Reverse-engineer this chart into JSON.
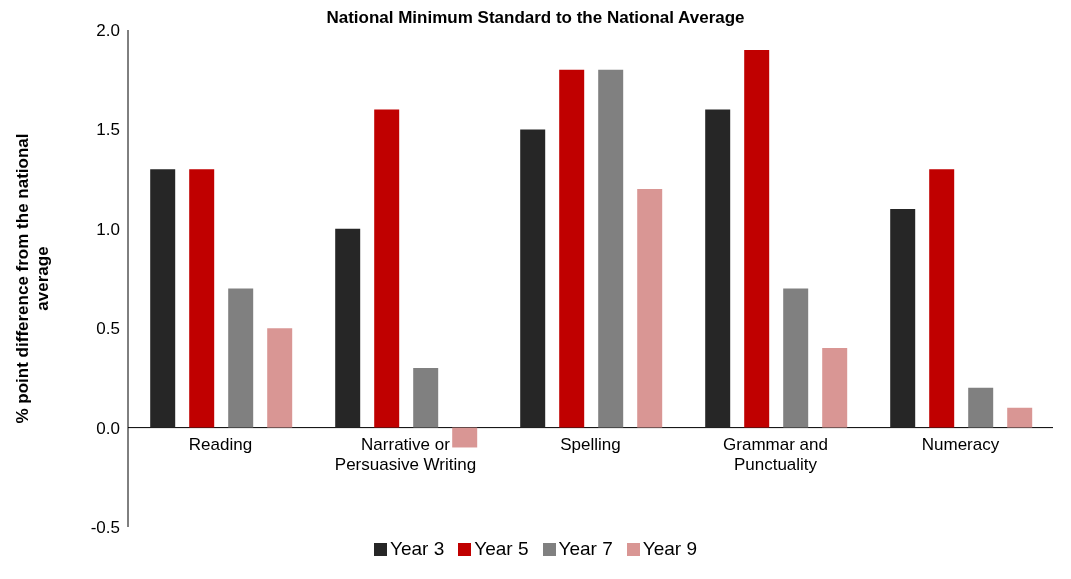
{
  "chart_data": {
    "type": "bar",
    "title": "National Minimum Standard to the National Average",
    "ylabel": "% point difference from the national average",
    "categories": [
      "Reading",
      "Narrative or Persuasive Writing",
      "Spelling",
      "Grammar and Punctuality",
      "Numeracy"
    ],
    "series": [
      {
        "name": "Year 3",
        "color": "#262626",
        "values": [
          1.3,
          1.0,
          1.5,
          1.6,
          1.1
        ]
      },
      {
        "name": "Year 5",
        "color": "#c00000",
        "values": [
          1.3,
          1.6,
          1.8,
          1.9,
          1.3
        ]
      },
      {
        "name": "Year 7",
        "color": "#808080",
        "values": [
          0.7,
          0.3,
          1.8,
          0.7,
          0.2
        ]
      },
      {
        "name": "Year 9",
        "color": "#d99694",
        "values": [
          0.5,
          -0.1,
          1.2,
          0.4,
          0.1
        ]
      }
    ],
    "ylim": [
      -0.5,
      2.0
    ],
    "yticks": [
      {
        "value": -0.5,
        "label": "-0.5"
      },
      {
        "value": 0,
        "label": "0.0"
      },
      {
        "value": 0.5,
        "label": "0.5"
      },
      {
        "value": 1,
        "label": "1.0"
      },
      {
        "value": 1.5,
        "label": "1.5"
      },
      {
        "value": 2,
        "label": "2.0"
      }
    ],
    "grid": false,
    "legend": "bottom"
  }
}
